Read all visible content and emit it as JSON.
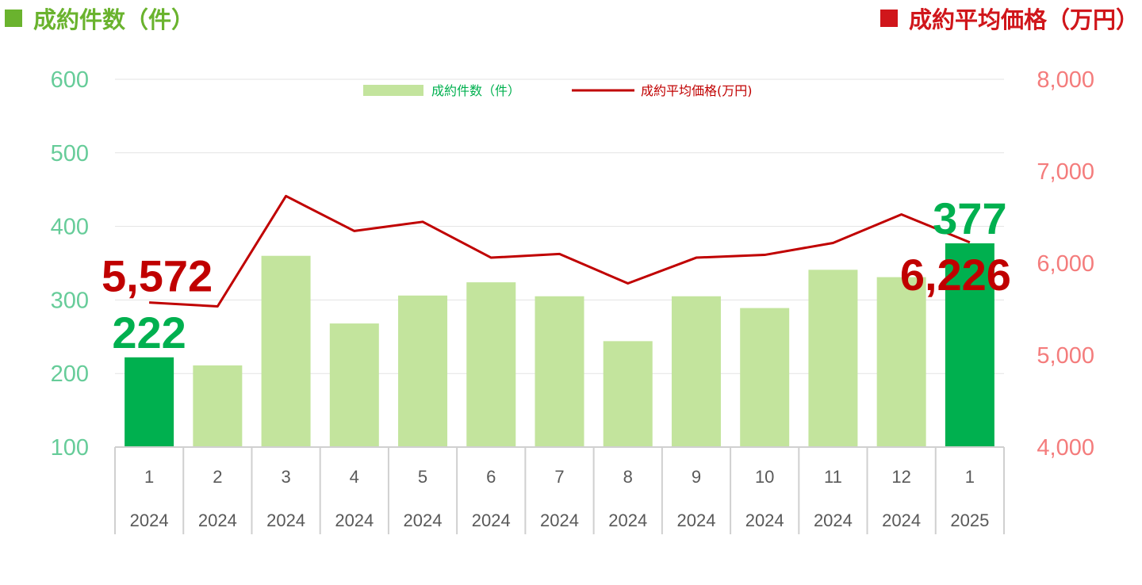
{
  "header": {
    "left_title": "成約件数（件）",
    "right_title": "成約平均価格（万円）"
  },
  "chart_data": {
    "type": "bar",
    "categories": [
      "1",
      "2",
      "3",
      "4",
      "5",
      "6",
      "7",
      "8",
      "9",
      "10",
      "11",
      "12",
      "1"
    ],
    "years": [
      "2024",
      "2024",
      "2024",
      "2024",
      "2024",
      "2024",
      "2024",
      "2024",
      "2024",
      "2024",
      "2024",
      "2024",
      "2025"
    ],
    "series": [
      {
        "name": "成約件数（件）",
        "type": "bar",
        "axis": "left",
        "values": [
          222,
          211,
          360,
          268,
          306,
          324,
          305,
          244,
          305,
          289,
          341,
          331,
          377
        ],
        "highlight_indices": [
          0,
          12
        ],
        "color": "#c3e49d",
        "highlight_color": "#00b04f"
      },
      {
        "name": "成約平均価格(万円)",
        "type": "line",
        "axis": "right",
        "values": [
          5572,
          5530,
          6730,
          6350,
          6450,
          6060,
          6100,
          5780,
          6060,
          6090,
          6220,
          6530,
          6226
        ],
        "color": "#c00000"
      }
    ],
    "left_axis": {
      "ylim": [
        100,
        600
      ],
      "ticks": [
        "100",
        "200",
        "300",
        "400",
        "500",
        "600"
      ],
      "color": "#66cc99"
    },
    "right_axis": {
      "ylim": [
        4000,
        8000
      ],
      "ticks": [
        "4,000",
        "5,000",
        "6,000",
        "7,000",
        "8,000"
      ],
      "color": "#f47c7c"
    },
    "annotations": [
      {
        "text": "222",
        "series": 0,
        "index": 0,
        "color": "#00b04f"
      },
      {
        "text": "5,572",
        "series": 1,
        "index": 0,
        "color": "#c00000"
      },
      {
        "text": "377",
        "series": 0,
        "index": 12,
        "color": "#00b04f"
      },
      {
        "text": "6,226",
        "series": 1,
        "index": 12,
        "color": "#c00000"
      }
    ],
    "grid": true,
    "legend": "top-center"
  }
}
